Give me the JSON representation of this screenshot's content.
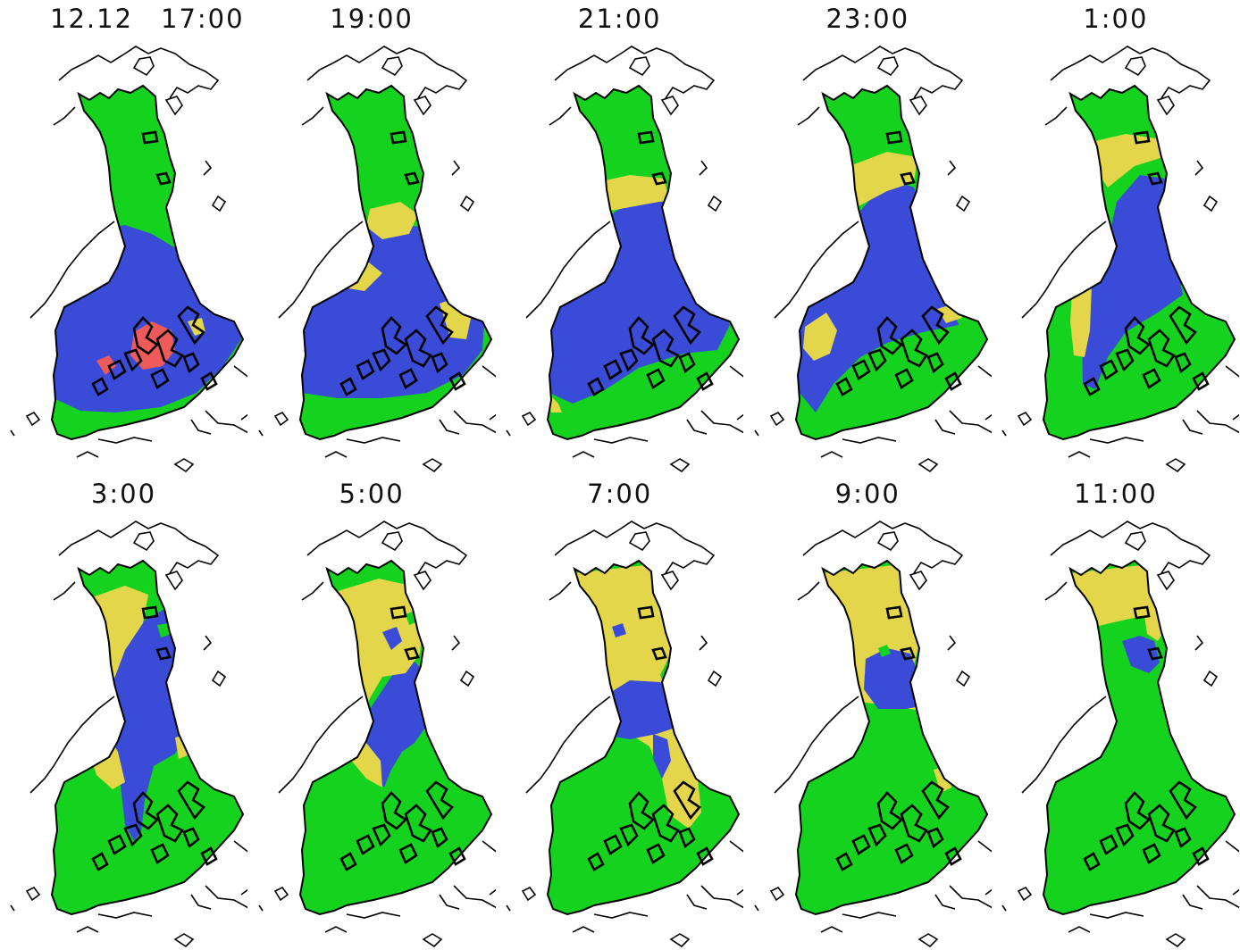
{
  "colors": {
    "green": "#14d21e",
    "yellow": "#e3d64a",
    "blue": "#3a4bd8",
    "red": "#ee5a5a",
    "outline": "#000000",
    "background": "#ffffff"
  },
  "panels": [
    {
      "date": "12.12",
      "time": "17:00",
      "scheme": "t17"
    },
    {
      "time": "19:00",
      "scheme": "t19"
    },
    {
      "time": "21:00",
      "scheme": "t21"
    },
    {
      "time": "23:00",
      "scheme": "t23"
    },
    {
      "time": "1:00",
      "scheme": "t01"
    },
    {
      "time": "3:00",
      "scheme": "t03"
    },
    {
      "time": "5:00",
      "scheme": "t05"
    },
    {
      "time": "7:00",
      "scheme": "t07"
    },
    {
      "time": "9:00",
      "scheme": "t09"
    },
    {
      "time": "11:00",
      "scheme": "t11"
    }
  ]
}
